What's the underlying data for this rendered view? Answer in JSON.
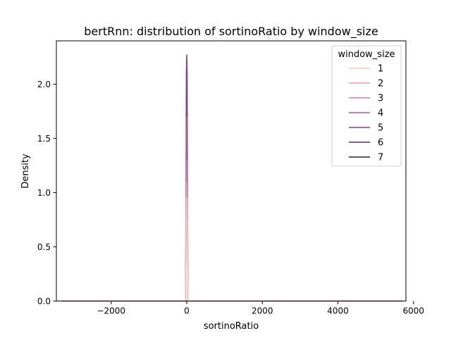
{
  "chart_data": {
    "type": "line",
    "title": "bertRnn: distribution of sortinoRatio by window_size",
    "xlabel": "sortinoRatio",
    "ylabel": "Density",
    "xlim": [
      -3450,
      5800
    ],
    "ylim": [
      0,
      2.4
    ],
    "xticks": [
      -2000,
      0,
      2000,
      4000,
      6000
    ],
    "xtick_labels": [
      "−2000",
      "0",
      "2000",
      "4000",
      "6000"
    ],
    "yticks": [
      0,
      0.5,
      1.0,
      1.5,
      2.0
    ],
    "ytick_labels": [
      "0.0",
      "0.5",
      "1.0",
      "1.5",
      "2.0"
    ],
    "grid": false,
    "legend": {
      "title": "window_size",
      "position": "top-right"
    },
    "series": [
      {
        "name": "1",
        "color": "#f0c7c5",
        "x": [
          -3300,
          -30,
          -10,
          0,
          10,
          30,
          5700
        ],
        "y": [
          0,
          0,
          0.95,
          0.95,
          0.95,
          0,
          0
        ]
      },
      {
        "name": "2",
        "color": "#dba3ae",
        "x": [
          -3300,
          -30,
          -10,
          0,
          10,
          30,
          5700
        ],
        "y": [
          0,
          0,
          1.05,
          1.1,
          1.05,
          0,
          0
        ]
      },
      {
        "name": "3",
        "color": "#c3829e",
        "x": [
          -3300,
          -30,
          -10,
          0,
          10,
          30,
          5700
        ],
        "y": [
          0,
          0,
          1.2,
          1.3,
          1.2,
          0,
          0
        ]
      },
      {
        "name": "4",
        "color": "#a3648f",
        "x": [
          -3300,
          -30,
          -10,
          0,
          10,
          30,
          5700
        ],
        "y": [
          0,
          0,
          1.5,
          1.7,
          1.5,
          0,
          0
        ]
      },
      {
        "name": "5",
        "color": "#7e4a7f",
        "x": [
          -3300,
          -30,
          -10,
          0,
          10,
          30,
          5700
        ],
        "y": [
          0,
          0,
          2.1,
          2.27,
          2.1,
          0,
          0
        ]
      },
      {
        "name": "6",
        "color": "#552d60",
        "x": [
          -3300,
          -30,
          -10,
          0,
          10,
          30,
          5700
        ],
        "y": [
          0,
          0,
          0,
          0,
          0,
          0,
          0
        ]
      },
      {
        "name": "7",
        "color": "#2d1b3c",
        "x": [
          -3300,
          -30,
          -10,
          0,
          10,
          30,
          5700
        ],
        "y": [
          0,
          0,
          0,
          0,
          0,
          0,
          0
        ]
      }
    ]
  }
}
